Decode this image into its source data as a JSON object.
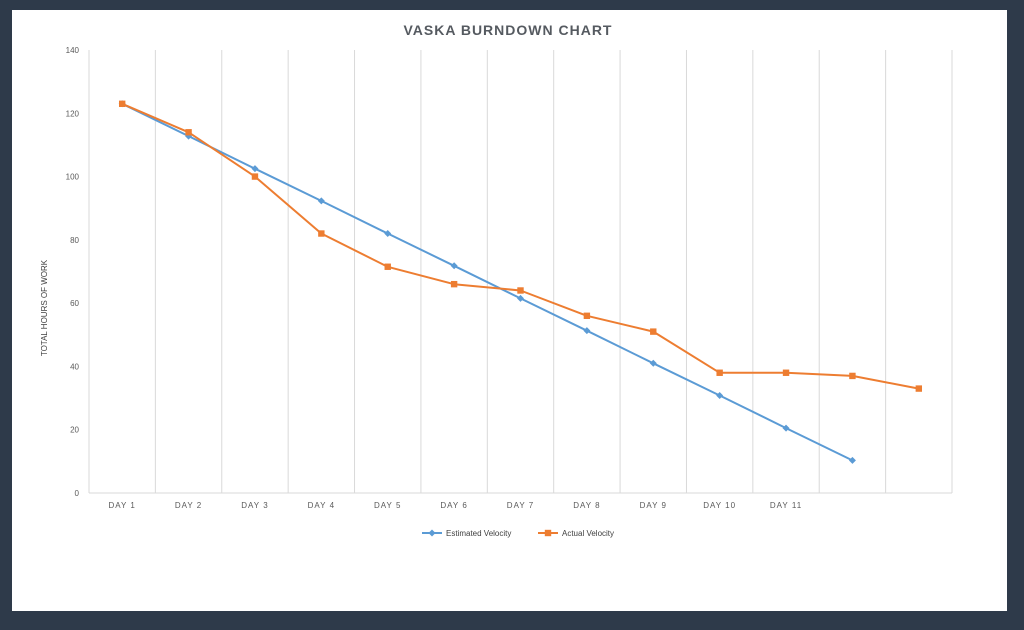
{
  "chart_data": {
    "type": "line",
    "title": "VASKA BURNDOWN CHART",
    "xlabel": "",
    "ylabel": "TOTAL HOURS OF WORK",
    "ylim": [
      0,
      140
    ],
    "yticks": [
      0,
      20,
      40,
      60,
      80,
      100,
      120,
      140
    ],
    "categories": [
      "DAY 1",
      "DAY 2",
      "DAY 3",
      "DAY 4",
      "DAY 5",
      "DAY 6",
      "DAY 7",
      "DAY 8",
      "DAY 9",
      "DAY 10",
      "DAY 11",
      "",
      ""
    ],
    "grid": "vertical",
    "legend": "bottom",
    "series": [
      {
        "name": "Estimated Velocity",
        "color": "#5b9bd5",
        "marker": "diamond",
        "values": [
          123,
          112.8,
          102.5,
          92.3,
          82,
          71.8,
          61.5,
          51.3,
          41,
          30.8,
          20.5,
          10.3,
          null
        ]
      },
      {
        "name": "Actual Velocity",
        "color": "#ed7d31",
        "marker": "square",
        "values": [
          123,
          114,
          100,
          82,
          71.5,
          66,
          64,
          56,
          51,
          38,
          38,
          37,
          33
        ]
      }
    ]
  }
}
